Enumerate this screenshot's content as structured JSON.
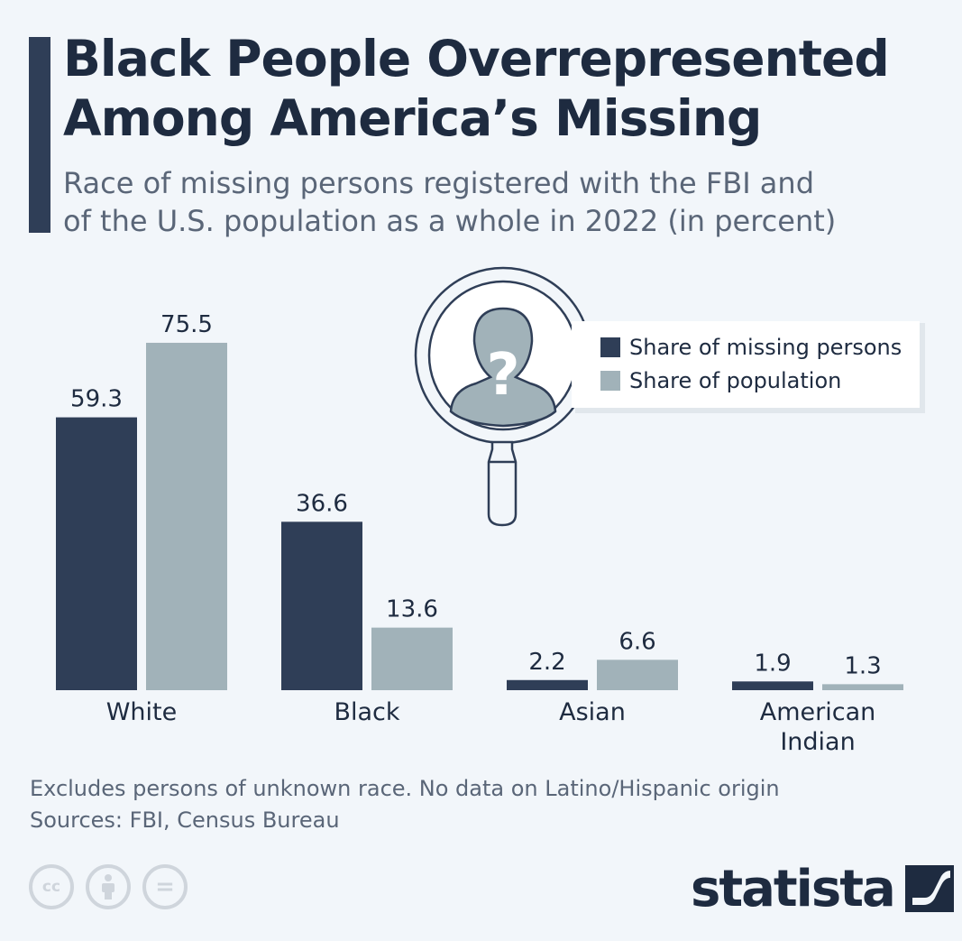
{
  "header": {
    "title_line1": "Black People Overrepresented",
    "title_line2": "Among America’s Missing",
    "subtitle_line1": "Race of missing persons registered with the FBI and",
    "subtitle_line2": "of the U.S. population as a whole in 2022 (in percent)"
  },
  "chart_data": {
    "type": "bar",
    "categories": [
      [
        "White"
      ],
      [
        "Black"
      ],
      [
        "Asian"
      ],
      [
        "American",
        "Indian"
      ]
    ],
    "series": [
      {
        "name": "Share of missing persons",
        "color": "#2f3e57",
        "values": [
          59.3,
          36.6,
          2.2,
          1.9
        ]
      },
      {
        "name": "Share of population",
        "color": "#a1b2b9",
        "values": [
          75.5,
          13.6,
          6.6,
          1.3
        ]
      }
    ],
    "value_labels": [
      [
        "59.3",
        "36.6",
        "2.2",
        "1.9"
      ],
      [
        "75.5",
        "13.6",
        "6.6",
        "1.3"
      ]
    ],
    "ylim": [
      0,
      100
    ],
    "grid": false,
    "legend_placement": "top-right"
  },
  "decoration": {
    "magnifier_icon": "magnifier-icon",
    "silhouette_icon": "person-silhouette-icon",
    "question_mark": "?"
  },
  "footer": {
    "note": "Excludes persons of unknown race. No data on Latino/Hispanic origin",
    "sources": "Sources: FBI, Census Bureau",
    "license_icons": [
      "cc-icon",
      "attribution-icon",
      "no-derivatives-icon"
    ],
    "cc_text": "cc",
    "nd_text": "=",
    "brand": "statista",
    "brand_icon": "statista-logo-icon"
  }
}
